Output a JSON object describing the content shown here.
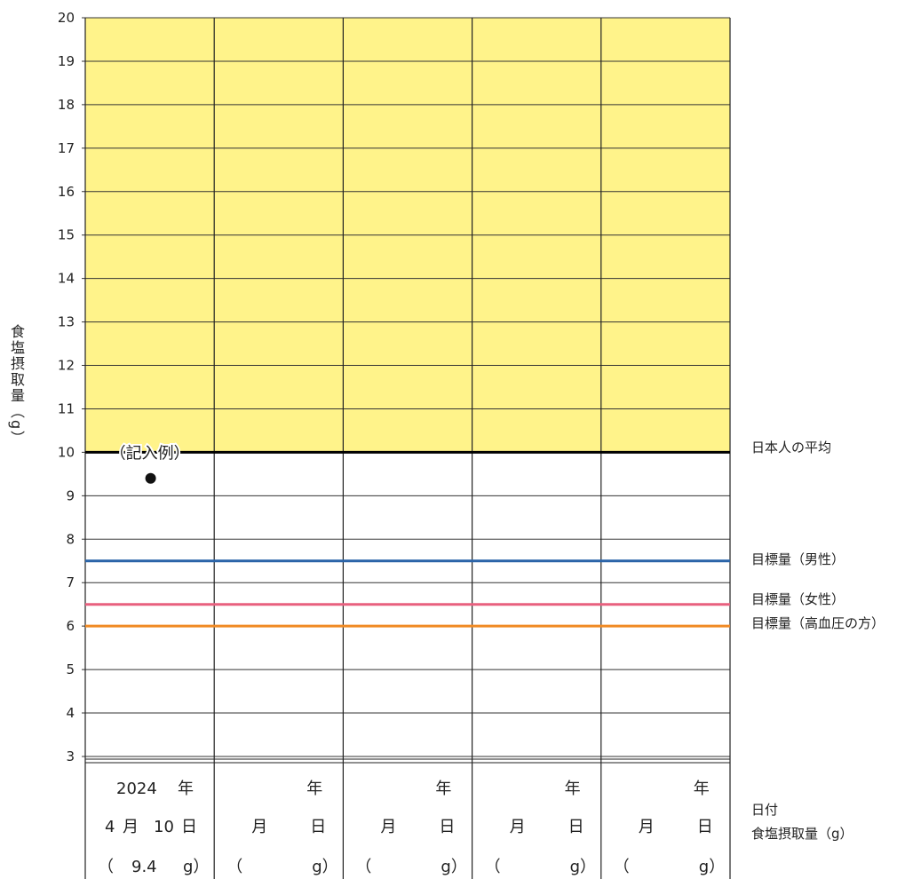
{
  "chart_data": {
    "type": "scatter",
    "ylabel": "食塩摂取量（g）",
    "ylim": [
      3,
      20
    ],
    "yticks": [
      3,
      4,
      5,
      6,
      7,
      8,
      9,
      10,
      11,
      12,
      13,
      14,
      15,
      16,
      17,
      18,
      19,
      20
    ],
    "columns": 5,
    "shaded_band": {
      "from": 10,
      "to": 20,
      "color": "#fff38a"
    },
    "reference_lines": [
      {
        "label": "日本人の平均",
        "value": 10,
        "color": "#000000"
      },
      {
        "label": "目標量（男性）",
        "value": 7.5,
        "color": "#2a64a8"
      },
      {
        "label": "目標量（女性）",
        "value": 6.5,
        "color": "#e8607f"
      },
      {
        "label": "目標量（高血圧の方）",
        "value": 6.0,
        "color": "#f08a24"
      }
    ],
    "example": {
      "label": "（記入例）",
      "column": 0,
      "value": 9.4
    },
    "points": [
      {
        "column": 0,
        "value": 9.4
      }
    ]
  },
  "table": {
    "columns": [
      {
        "year": "2024",
        "year_unit": "年",
        "month": "4",
        "month_unit": "月",
        "day": "10",
        "day_unit": "日",
        "open": "（",
        "value": "9.4",
        "close": "g）"
      },
      {
        "year": "",
        "year_unit": "年",
        "month": "",
        "month_unit": "月",
        "day": "",
        "day_unit": "日",
        "open": "（",
        "value": "",
        "close": "g）"
      },
      {
        "year": "",
        "year_unit": "年",
        "month": "",
        "month_unit": "月",
        "day": "",
        "day_unit": "日",
        "open": "（",
        "value": "",
        "close": "g）"
      },
      {
        "year": "",
        "year_unit": "年",
        "month": "",
        "month_unit": "月",
        "day": "",
        "day_unit": "日",
        "open": "（",
        "value": "",
        "close": "g）"
      },
      {
        "year": "",
        "year_unit": "年",
        "month": "",
        "month_unit": "月",
        "day": "",
        "day_unit": "日",
        "open": "（",
        "value": "",
        "close": "g）"
      }
    ],
    "row_labels": {
      "date": "日付",
      "intake": "食塩摂取量（g）"
    }
  }
}
